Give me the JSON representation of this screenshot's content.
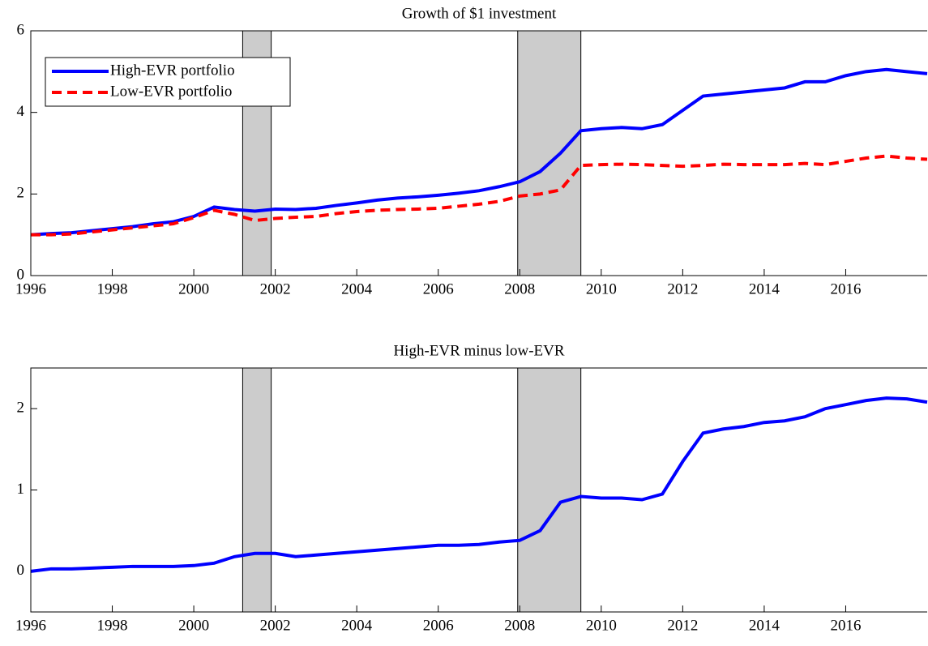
{
  "chart_data": [
    {
      "type": "line",
      "title": "Growth of $1 investment",
      "x": [
        1996,
        1996.5,
        1997,
        1997.5,
        1998,
        1998.5,
        1999,
        1999.5,
        2000,
        2000.5,
        2001,
        2001.5,
        2002,
        2002.5,
        2003,
        2003.5,
        2004,
        2004.5,
        2005,
        2005.5,
        2006,
        2006.5,
        2007,
        2007.5,
        2008,
        2008.5,
        2009,
        2009.5,
        2010,
        2010.5,
        2011,
        2011.5,
        2012,
        2012.5,
        2013,
        2013.5,
        2014,
        2014.5,
        2015,
        2015.5,
        2016,
        2016.5,
        2017,
        2017.5,
        2018
      ],
      "series": [
        {
          "name": "High-EVR portfolio",
          "color": "#0000ff",
          "linestyle": "solid",
          "values": [
            1.0,
            1.03,
            1.05,
            1.1,
            1.15,
            1.2,
            1.27,
            1.32,
            1.45,
            1.68,
            1.62,
            1.58,
            1.63,
            1.62,
            1.65,
            1.72,
            1.78,
            1.85,
            1.9,
            1.93,
            1.97,
            2.02,
            2.08,
            2.18,
            2.3,
            2.55,
            3.0,
            3.55,
            3.6,
            3.63,
            3.6,
            3.7,
            4.05,
            4.4,
            4.45,
            4.5,
            4.55,
            4.6,
            4.75,
            4.75,
            4.9,
            5.0,
            5.05,
            5.0,
            4.95
          ]
        },
        {
          "name": "Low-EVR portfolio",
          "color": "#ff0000",
          "linestyle": "dashed",
          "values": [
            1.0,
            1.0,
            1.02,
            1.07,
            1.12,
            1.17,
            1.22,
            1.27,
            1.42,
            1.6,
            1.5,
            1.35,
            1.4,
            1.43,
            1.45,
            1.52,
            1.57,
            1.6,
            1.62,
            1.63,
            1.65,
            1.7,
            1.75,
            1.82,
            1.95,
            2.0,
            2.1,
            2.7,
            2.72,
            2.73,
            2.72,
            2.7,
            2.68,
            2.7,
            2.73,
            2.72,
            2.72,
            2.72,
            2.75,
            2.72,
            2.8,
            2.88,
            2.93,
            2.88,
            2.85
          ]
        }
      ],
      "shaded_x": [
        [
          2001.2,
          2001.9
        ],
        [
          2007.95,
          2009.5
        ]
      ],
      "xlim": [
        1996,
        2018
      ],
      "xticks": [
        1996,
        1998,
        2000,
        2002,
        2004,
        2006,
        2008,
        2010,
        2012,
        2014,
        2016
      ],
      "ylim": [
        0,
        6
      ],
      "yticks": [
        0,
        2,
        4,
        6
      ],
      "legend": "upper left"
    },
    {
      "type": "line",
      "title": "High-EVR minus low-EVR",
      "x": [
        1996,
        1996.5,
        1997,
        1997.5,
        1998,
        1998.5,
        1999,
        1999.5,
        2000,
        2000.5,
        2001,
        2001.5,
        2002,
        2002.5,
        2003,
        2003.5,
        2004,
        2004.5,
        2005,
        2005.5,
        2006,
        2006.5,
        2007,
        2007.5,
        2008,
        2008.5,
        2009,
        2009.5,
        2010,
        2010.5,
        2011,
        2011.5,
        2012,
        2012.5,
        2013,
        2013.5,
        2014,
        2014.5,
        2015,
        2015.5,
        2016,
        2016.5,
        2017,
        2017.5,
        2018
      ],
      "series": [
        {
          "color": "#0000ff",
          "linestyle": "solid",
          "values": [
            0,
            0.03,
            0.03,
            0.04,
            0.05,
            0.06,
            0.06,
            0.06,
            0.07,
            0.1,
            0.18,
            0.22,
            0.22,
            0.18,
            0.2,
            0.22,
            0.24,
            0.26,
            0.28,
            0.3,
            0.32,
            0.32,
            0.33,
            0.36,
            0.38,
            0.5,
            0.85,
            0.92,
            0.9,
            0.9,
            0.88,
            0.95,
            1.35,
            1.7,
            1.75,
            1.78,
            1.83,
            1.85,
            1.9,
            2.0,
            2.05,
            2.1,
            2.13,
            2.12,
            2.08
          ]
        }
      ],
      "shaded_x": [
        [
          2001.2,
          2001.9
        ],
        [
          2007.95,
          2009.5
        ]
      ],
      "xlim": [
        1996,
        2018
      ],
      "xticks": [
        1996,
        1998,
        2000,
        2002,
        2004,
        2006,
        2008,
        2010,
        2012,
        2014,
        2016
      ],
      "ylim": [
        -0.5,
        2.5
      ],
      "yticks": [
        0,
        1,
        2
      ]
    }
  ]
}
